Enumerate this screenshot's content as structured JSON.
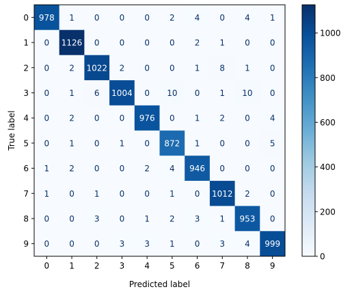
{
  "chart_data": {
    "type": "heatmap",
    "title": "",
    "xlabel": "Predicted label",
    "ylabel": "True label",
    "x_categories": [
      "0",
      "1",
      "2",
      "3",
      "4",
      "5",
      "6",
      "7",
      "8",
      "9"
    ],
    "y_categories": [
      "0",
      "1",
      "2",
      "3",
      "4",
      "5",
      "6",
      "7",
      "8",
      "9"
    ],
    "values": [
      [
        978,
        1,
        0,
        0,
        0,
        2,
        4,
        0,
        4,
        1
      ],
      [
        0,
        1126,
        0,
        0,
        0,
        0,
        2,
        1,
        0,
        0
      ],
      [
        0,
        2,
        1022,
        2,
        0,
        0,
        1,
        8,
        1,
        0
      ],
      [
        0,
        1,
        6,
        1004,
        0,
        10,
        0,
        1,
        10,
        0
      ],
      [
        0,
        2,
        0,
        0,
        976,
        0,
        1,
        2,
        0,
        4
      ],
      [
        0,
        1,
        0,
        1,
        0,
        872,
        1,
        0,
        0,
        5
      ],
      [
        1,
        2,
        0,
        0,
        2,
        4,
        946,
        0,
        0,
        0
      ],
      [
        1,
        0,
        1,
        0,
        0,
        1,
        0,
        1012,
        2,
        0
      ],
      [
        0,
        0,
        3,
        0,
        1,
        2,
        3,
        1,
        953,
        0
      ],
      [
        0,
        0,
        0,
        3,
        3,
        1,
        0,
        3,
        4,
        999
      ]
    ],
    "colormap": "Blues",
    "color_low": "#f7fbff",
    "color_high": "#08306b",
    "value_range": [
      0,
      1126
    ],
    "colorbar_ticks": [
      "0",
      "200",
      "400",
      "600",
      "800",
      "1000"
    ],
    "grid": false,
    "colorbar_position": "right"
  }
}
